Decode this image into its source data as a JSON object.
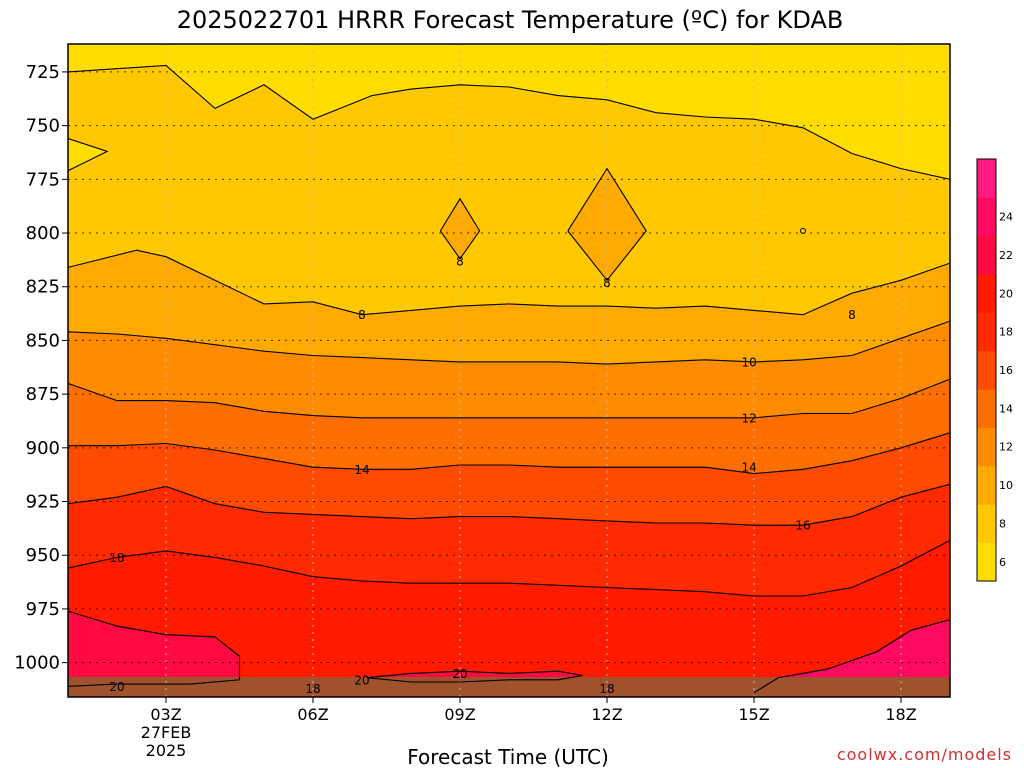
{
  "title": "2025022701 HRRR Forecast Temperature (ºC) for KDAB",
  "credit": "coolwx.com/models",
  "chart_data": {
    "type": "heatmap",
    "title": "2025022701 HRRR Forecast Temperature (ºC) for KDAB",
    "xlabel": "Forecast Time (UTC)",
    "ylabel": "",
    "x_ticks": [
      {
        "label": "03Z",
        "hour": 3,
        "date": "27FEB",
        "year": "2025"
      },
      {
        "label": "06Z",
        "hour": 6
      },
      {
        "label": "09Z",
        "hour": 9
      },
      {
        "label": "12Z",
        "hour": 12
      },
      {
        "label": "15Z",
        "hour": 15
      },
      {
        "label": "18Z",
        "hour": 18
      }
    ],
    "xlim": [
      1,
      19
    ],
    "y_ticks": [
      "725",
      "750",
      "775",
      "800",
      "825",
      "850",
      "875",
      "900",
      "925",
      "950",
      "975",
      "1000"
    ],
    "ylim": [
      712,
      1016
    ],
    "y_reversed": true,
    "grid": true,
    "colorbar": {
      "ticks": [
        "6",
        "8",
        "10",
        "12",
        "14",
        "16",
        "18",
        "20",
        "22",
        "24"
      ],
      "bands": [
        {
          "min": 5,
          "max": 7,
          "color": "#ffdd00"
        },
        {
          "min": 7,
          "max": 9,
          "color": "#ffc800"
        },
        {
          "min": 9,
          "max": 11,
          "color": "#ffaa00"
        },
        {
          "min": 11,
          "max": 13,
          "color": "#ff8c00"
        },
        {
          "min": 13,
          "max": 15,
          "color": "#ff6e00"
        },
        {
          "min": 15,
          "max": 17,
          "color": "#ff4b00"
        },
        {
          "min": 17,
          "max": 19,
          "color": "#ff2a00"
        },
        {
          "min": 19,
          "max": 21,
          "color": "#ff1a00"
        },
        {
          "min": 21,
          "max": 23,
          "color": "#ff0a40"
        },
        {
          "min": 23,
          "max": 25,
          "color": "#ff0a60"
        },
        {
          "min": 25,
          "max": 27,
          "color": "#ff1a80"
        }
      ]
    },
    "ground_color": "#a0522d",
    "contours": [
      {
        "level": 6,
        "points": [
          [
            1,
            725
          ],
          [
            3,
            722
          ],
          [
            4,
            742
          ],
          [
            5,
            731
          ],
          [
            6,
            747
          ],
          [
            7.2,
            736
          ],
          [
            8,
            733
          ],
          [
            9,
            731
          ],
          [
            10,
            732
          ],
          [
            11,
            736
          ],
          [
            12,
            738
          ],
          [
            13,
            744
          ],
          [
            14,
            746
          ],
          [
            15,
            747
          ],
          [
            16,
            751
          ],
          [
            17,
            763
          ],
          [
            18,
            770
          ],
          [
            19,
            775
          ]
        ]
      },
      {
        "level": 6,
        "points": [
          [
            1,
            771
          ],
          [
            1.8,
            762
          ],
          [
            1,
            756
          ]
        ]
      },
      {
        "level": 8,
        "points": [
          [
            1,
            816
          ],
          [
            2.4,
            808
          ],
          [
            3,
            811
          ],
          [
            4,
            822
          ],
          [
            5,
            833
          ],
          [
            6,
            832
          ],
          [
            7,
            838
          ],
          [
            8,
            836
          ],
          [
            9,
            834
          ],
          [
            10,
            833
          ],
          [
            11,
            834
          ],
          [
            12,
            834
          ],
          [
            13,
            835
          ],
          [
            14,
            834
          ],
          [
            15,
            836
          ],
          [
            16,
            838
          ],
          [
            17,
            828
          ],
          [
            18,
            822
          ],
          [
            19,
            814
          ]
        ]
      },
      {
        "level": 8,
        "points": [
          [
            8.6,
            799
          ],
          [
            9,
            784
          ],
          [
            9.4,
            799
          ],
          [
            9,
            812
          ],
          [
            8.6,
            799
          ]
        ]
      },
      {
        "level": 8,
        "points": [
          [
            11.2,
            799
          ],
          [
            12,
            770
          ],
          [
            12.8,
            799
          ],
          [
            12,
            822
          ],
          [
            11.2,
            799
          ]
        ]
      },
      {
        "level": 10,
        "points": [
          [
            1,
            846
          ],
          [
            2,
            847
          ],
          [
            3,
            849
          ],
          [
            4,
            852
          ],
          [
            5,
            855
          ],
          [
            6,
            857
          ],
          [
            7,
            858
          ],
          [
            8,
            859
          ],
          [
            9,
            860
          ],
          [
            10,
            860
          ],
          [
            11,
            860
          ],
          [
            12,
            861
          ],
          [
            13,
            860
          ],
          [
            14,
            859
          ],
          [
            15,
            860
          ],
          [
            16,
            859
          ],
          [
            17,
            857
          ],
          [
            18,
            849
          ],
          [
            19,
            841
          ]
        ]
      },
      {
        "level": 12,
        "points": [
          [
            1,
            870
          ],
          [
            2,
            878
          ],
          [
            3,
            878
          ],
          [
            4,
            879
          ],
          [
            5,
            883
          ],
          [
            6,
            885
          ],
          [
            7,
            886
          ],
          [
            8,
            886
          ],
          [
            9,
            886
          ],
          [
            10,
            886
          ],
          [
            11,
            886
          ],
          [
            12,
            886
          ],
          [
            13,
            886
          ],
          [
            14,
            886
          ],
          [
            15,
            886
          ],
          [
            16,
            884
          ],
          [
            17,
            884
          ],
          [
            18,
            877
          ],
          [
            19,
            868
          ]
        ]
      },
      {
        "level": 14,
        "points": [
          [
            1,
            899
          ],
          [
            2,
            899
          ],
          [
            3,
            898
          ],
          [
            4,
            901
          ],
          [
            5,
            905
          ],
          [
            6,
            909
          ],
          [
            7,
            910
          ],
          [
            8,
            910
          ],
          [
            9,
            908
          ],
          [
            10,
            908
          ],
          [
            11,
            909
          ],
          [
            12,
            909
          ],
          [
            13,
            909
          ],
          [
            14,
            909
          ],
          [
            15,
            912
          ],
          [
            16,
            910
          ],
          [
            17,
            906
          ],
          [
            18,
            900
          ],
          [
            19,
            893
          ]
        ]
      },
      {
        "level": 16,
        "points": [
          [
            1,
            926
          ],
          [
            2,
            923
          ],
          [
            3,
            918
          ],
          [
            4,
            926
          ],
          [
            5,
            930
          ],
          [
            6,
            931
          ],
          [
            7,
            932
          ],
          [
            8,
            933
          ],
          [
            9,
            932
          ],
          [
            10,
            932
          ],
          [
            11,
            933
          ],
          [
            12,
            934
          ],
          [
            13,
            935
          ],
          [
            14,
            935
          ],
          [
            15,
            936
          ],
          [
            16,
            936
          ],
          [
            17,
            932
          ],
          [
            18,
            923
          ],
          [
            19,
            917
          ]
        ]
      },
      {
        "level": 18,
        "points": [
          [
            1,
            956
          ],
          [
            2,
            951
          ],
          [
            3,
            948
          ],
          [
            4,
            951
          ],
          [
            5,
            955
          ],
          [
            6,
            960
          ],
          [
            7,
            962
          ],
          [
            8,
            963
          ],
          [
            9,
            963
          ],
          [
            10,
            963
          ],
          [
            11,
            964
          ],
          [
            12,
            965
          ],
          [
            13,
            966
          ],
          [
            14,
            967
          ],
          [
            15,
            969
          ],
          [
            16,
            969
          ],
          [
            17,
            965
          ],
          [
            18,
            955
          ],
          [
            19,
            943
          ]
        ]
      },
      {
        "level": 20,
        "points": [
          [
            1,
            976
          ],
          [
            2,
            983
          ],
          [
            3,
            987
          ],
          [
            4,
            988
          ],
          [
            4.5,
            997
          ],
          [
            4.5,
            1008
          ],
          [
            3.5,
            1010
          ],
          [
            2,
            1010
          ],
          [
            1,
            1011
          ]
        ]
      },
      {
        "level": 20,
        "points": [
          [
            7.1,
            1007
          ],
          [
            8,
            1005
          ],
          [
            9,
            1004
          ],
          [
            10,
            1005
          ],
          [
            11,
            1004
          ],
          [
            11.5,
            1006
          ],
          [
            11,
            1008
          ],
          [
            10,
            1008
          ],
          [
            9,
            1009
          ],
          [
            8,
            1009
          ],
          [
            7.1,
            1007
          ]
        ]
      },
      {
        "level": 22,
        "points": [
          [
            15,
            1014
          ],
          [
            15.5,
            1007
          ],
          [
            16.5,
            1003
          ],
          [
            17.5,
            995
          ],
          [
            18.2,
            985
          ],
          [
            19,
            980
          ]
        ]
      }
    ],
    "contour_labels": [
      {
        "text": "8",
        "x": 9,
        "p": 813
      },
      {
        "text": "8",
        "x": 12,
        "p": 823
      },
      {
        "text": "8",
        "x": 7,
        "p": 838
      },
      {
        "text": "8",
        "x": 17,
        "p": 838
      },
      {
        "text": "10",
        "x": 14.9,
        "p": 860
      },
      {
        "text": "12",
        "x": 14.9,
        "p": 886
      },
      {
        "text": "14",
        "x": 7,
        "p": 910
      },
      {
        "text": "14",
        "x": 14.9,
        "p": 909
      },
      {
        "text": "16",
        "x": 16,
        "p": 936
      },
      {
        "text": "18",
        "x": 2,
        "p": 951
      },
      {
        "text": "18",
        "x": 6,
        "p": 1012
      },
      {
        "text": "18",
        "x": 12,
        "p": 1012
      },
      {
        "text": "20",
        "x": 7,
        "p": 1008
      },
      {
        "text": "20",
        "x": 9,
        "p": 1005
      },
      {
        "text": "20",
        "x": 2,
        "p": 1011
      }
    ]
  }
}
